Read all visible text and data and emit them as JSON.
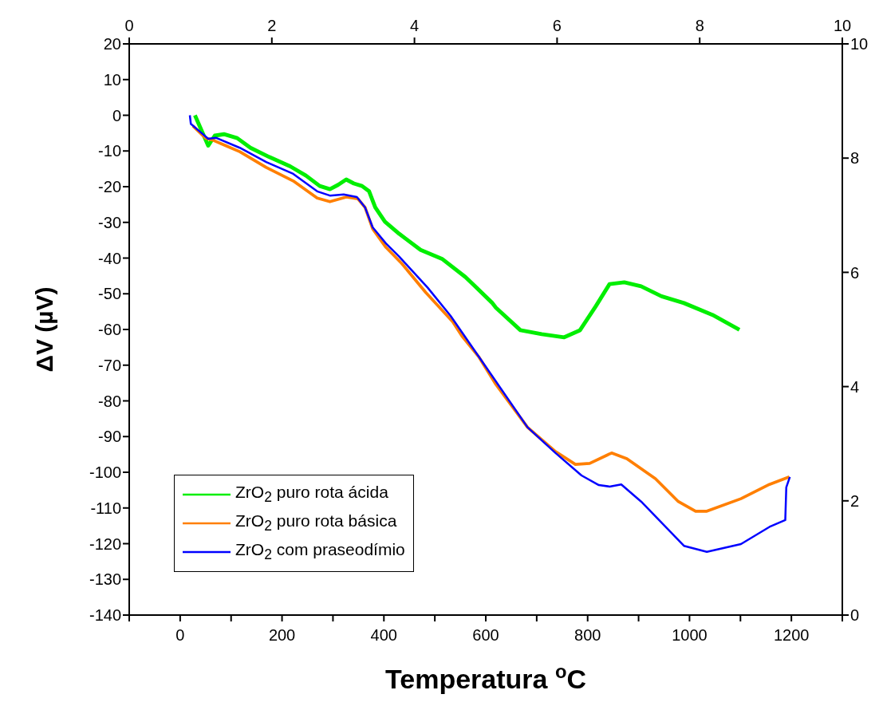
{
  "chart_data": {
    "type": "line",
    "xlabel": "Temperatura $^{o}$C",
    "ylabel": "ΔV  (µV)",
    "xlim": [
      -100,
      1300
    ],
    "xticks": [
      {
        "value": -100,
        "label": null
      },
      0,
      {
        "value": 100,
        "label": null
      },
      200,
      {
        "value": 300,
        "label": null
      },
      400,
      {
        "value": 500,
        "label": null
      },
      600,
      {
        "value": 700,
        "label": null
      },
      800,
      {
        "value": 900,
        "label": null
      },
      1000,
      {
        "value": 1100,
        "label": null
      },
      1200,
      {
        "value": 1300,
        "label": null
      }
    ],
    "ylim": [
      -140,
      20
    ],
    "yticks": [
      -140,
      -130,
      -120,
      -110,
      -100,
      -90,
      -80,
      -70,
      -60,
      -50,
      -40,
      -30,
      -20,
      -10,
      0,
      10,
      20
    ],
    "x2lim": [
      0,
      10
    ],
    "x2ticks": [
      0,
      2,
      4,
      6,
      8,
      10
    ],
    "y2lim": [
      0,
      10
    ],
    "y2ticks": [
      0,
      2,
      4,
      6,
      8,
      10
    ],
    "grid": false,
    "legend": "bottom left",
    "marker": "none",
    "line_style": "solid",
    "series": [
      {
        "name": "ZrO$_{2}$  puro rota ácida",
        "color": "#00ee00",
        "x": [
          29,
          55,
          68,
          86,
          112,
          138,
          175,
          216,
          247,
          274,
          294,
          310,
          326,
          341,
          357,
          371,
          383,
          402,
          430,
          472,
          514,
          560,
          576,
          613,
          620,
          668,
          710,
          754,
          785,
          816,
          843,
          872,
          905,
          945,
          989,
          1045,
          1098
        ],
        "values": [
          0,
          -8.5,
          -5.7,
          -5.3,
          -6.4,
          -9.1,
          -11.7,
          -14.3,
          -16.9,
          -19.8,
          -20.7,
          -19.5,
          -18,
          -19.1,
          -19.8,
          -21.3,
          -25.8,
          -29.8,
          -33.2,
          -37.7,
          -40.2,
          -45.3,
          -47.5,
          -52.6,
          -53.9,
          -60.2,
          -61.3,
          -62.2,
          -60.2,
          -53.5,
          -47.3,
          -46.8,
          -47.9,
          -50.7,
          -52.6,
          -55.9,
          -60.1
        ]
      },
      {
        "name": "ZrO$_{2}$  puro rota básica",
        "color": "#ff7f00",
        "x": [
          25,
          50,
          65,
          91,
          117,
          169,
          222,
          269,
          294,
          326,
          349,
          363,
          378,
          404,
          435,
          482,
          535,
          553,
          587,
          620,
          682,
          737,
          776,
          804,
          847,
          877,
          933,
          978,
          1012,
          1034,
          1101,
          1157,
          1196
        ],
        "values": [
          -3,
          -6.4,
          -7,
          -8.6,
          -10.2,
          -14.6,
          -18.4,
          -23.2,
          -24.2,
          -22.9,
          -23.4,
          -25.8,
          -31.8,
          -37,
          -41.5,
          -49.6,
          -57.8,
          -61.8,
          -67.8,
          -75.4,
          -87.4,
          -94.2,
          -97.8,
          -97.5,
          -94.6,
          -96.2,
          -101.8,
          -108.2,
          -110.9,
          -110.9,
          -107.4,
          -103.4,
          -101.3
        ]
      },
      {
        "name": "ZrO$_{2}$  com praseodímio",
        "color": "#0000ff",
        "x": [
          19,
          21,
          39,
          55,
          70,
          117,
          169,
          222,
          269,
          294,
          321,
          347,
          363,
          378,
          404,
          430,
          486,
          531,
          609,
          682,
          737,
          788,
          822,
          843,
          866,
          905,
          989,
          1034,
          1101,
          1157,
          1188,
          1190,
          1197
        ],
        "values": [
          0,
          -2.4,
          -4.6,
          -6.6,
          -6.3,
          -9.1,
          -13.1,
          -16.4,
          -21.3,
          -22.5,
          -22.2,
          -22.9,
          -25.8,
          -31.4,
          -35.9,
          -39.6,
          -48.3,
          -56.2,
          -72.3,
          -87.4,
          -94.6,
          -100.9,
          -103.6,
          -104,
          -103.4,
          -108.2,
          -120.6,
          -122.3,
          -120.1,
          -115.3,
          -113.4,
          -104.2,
          -101.3
        ]
      }
    ]
  }
}
